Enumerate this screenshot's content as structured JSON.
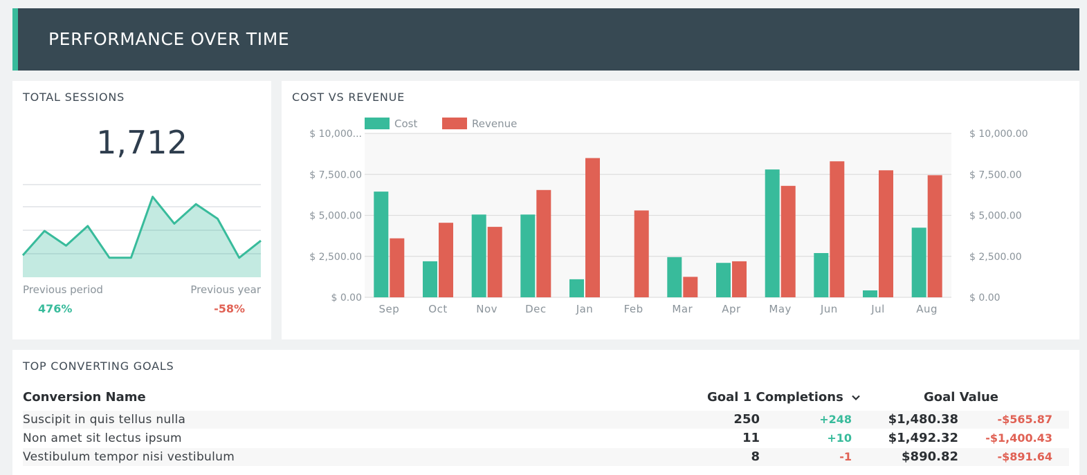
{
  "header": {
    "title": "PERFORMANCE OVER TIME"
  },
  "sessions": {
    "title": "TOTAL SESSIONS",
    "value": "1,712",
    "previous_period_label": "Previous period",
    "previous_period_value": "476%",
    "previous_year_label": "Previous year",
    "previous_year_value": "-58%",
    "sparkline": [
      37,
      47,
      41,
      49,
      36,
      36,
      61,
      50,
      58,
      52,
      36,
      43
    ]
  },
  "revenue": {
    "title": "COST VS REVENUE"
  },
  "chart_data": {
    "type": "bar",
    "title": "COST VS REVENUE",
    "categories": [
      "Sep",
      "Oct",
      "Nov",
      "Dec",
      "Jan",
      "Feb",
      "Mar",
      "Apr",
      "May",
      "Jun",
      "Jul",
      "Aug"
    ],
    "series": [
      {
        "name": "Cost",
        "color": "#38bb9b",
        "values": [
          6450,
          2200,
          5050,
          5050,
          1100,
          0,
          2450,
          2100,
          7800,
          2700,
          420,
          4250
        ]
      },
      {
        "name": "Revenue",
        "color": "#e06154",
        "values": [
          3600,
          4550,
          4300,
          6550,
          8500,
          5300,
          1250,
          2200,
          6800,
          8300,
          7750,
          7450
        ]
      }
    ],
    "ylim": [
      0,
      10000
    ],
    "y_ticks_left": [
      "$ 0.00",
      "$ 2,500.00",
      "$ 5,000.00",
      "$ 7,500.00",
      "$ 10,000..."
    ],
    "y_ticks_right": [
      "$ 0.00",
      "$ 2,500.00",
      "$ 5,000.00",
      "$ 7,500.00",
      "$ 10,000.00"
    ],
    "legend_position": "top-left",
    "grid": true
  },
  "goals": {
    "title": "TOP CONVERTING GOALS",
    "columns": {
      "name": "Conversion Name",
      "completions": "Goal 1 Completions",
      "value": "Goal Value"
    },
    "rows": [
      {
        "name": "Suscipit in quis tellus nulla",
        "completions": "250",
        "completions_delta": "+248",
        "completions_delta_color": "#38bb9b",
        "value": "$1,480.38",
        "value_delta": "-$565.87",
        "value_delta_color": "#e06154"
      },
      {
        "name": "Non amet sit lectus ipsum",
        "completions": "11",
        "completions_delta": "+10",
        "completions_delta_color": "#38bb9b",
        "value": "$1,492.32",
        "value_delta": "-$1,400.43",
        "value_delta_color": "#e06154"
      },
      {
        "name": "Vestibulum tempor nisi vestibulum",
        "completions": "8",
        "completions_delta": "-1",
        "completions_delta_color": "#e06154",
        "value": "$890.82",
        "value_delta": "-$891.64",
        "value_delta_color": "#e06154"
      }
    ]
  },
  "colors": {
    "accent": "#38bb9b",
    "negative": "#e06154",
    "header_bg": "#374953"
  }
}
